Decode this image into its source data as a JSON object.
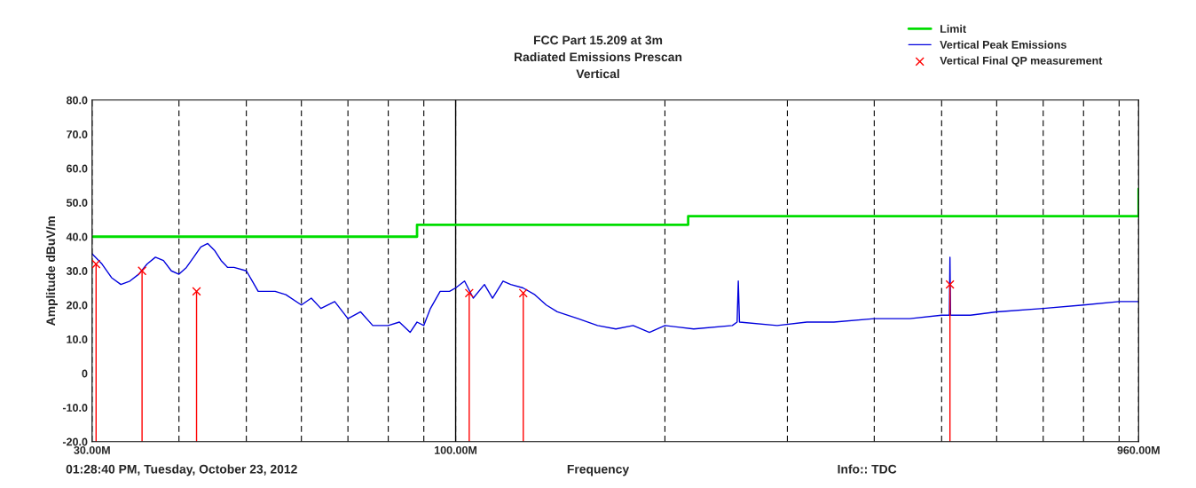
{
  "chart_data": {
    "type": "line",
    "title": "FCC Part 15.209 at 3m\nRadiated Emissions Prescan\nVertical",
    "xlabel": "Frequency",
    "ylabel": "Amplitude dBuV/m",
    "log": "x",
    "grid": "x",
    "legend": "top right",
    "xlim": [
      30,
      960
    ],
    "ylim": [
      -20,
      80
    ],
    "xticks": [
      {
        "value": 30,
        "label": "30.00M"
      },
      {
        "value": 40,
        "label": null
      },
      {
        "value": 50,
        "label": null
      },
      {
        "value": 60,
        "label": null
      },
      {
        "value": 70,
        "label": null
      },
      {
        "value": 80,
        "label": null
      },
      {
        "value": 90,
        "label": null
      },
      {
        "value": 100,
        "label": "100.00M"
      },
      {
        "value": 200,
        "label": null
      },
      {
        "value": 300,
        "label": null
      },
      {
        "value": 400,
        "label": null
      },
      {
        "value": 500,
        "label": null
      },
      {
        "value": 600,
        "label": null
      },
      {
        "value": 700,
        "label": null
      },
      {
        "value": 800,
        "label": null
      },
      {
        "value": 900,
        "label": null
      },
      {
        "value": 960,
        "label": "960.00M"
      }
    ],
    "yticks": [
      {
        "value": -20,
        "label": "-20.0"
      },
      {
        "value": -10,
        "label": "-10.0"
      },
      0,
      {
        "value": 10,
        "label": "10.0"
      },
      {
        "value": 20,
        "label": "20.0"
      },
      {
        "value": 30,
        "label": "30.0"
      },
      {
        "value": 40,
        "label": "40.0"
      },
      {
        "value": 50,
        "label": "50.0"
      },
      {
        "value": 60,
        "label": "60.0"
      },
      {
        "value": 70,
        "label": "70.0"
      },
      {
        "value": 80,
        "label": "80.0"
      }
    ],
    "ref_lines": [
      {
        "axis": "x",
        "value": 100,
        "color": "#000000",
        "line_style": "solid"
      }
    ],
    "annotations": [
      "01:28:40 PM, Tuesday, October 23, 2012",
      "Info:: TDC"
    ],
    "series": [
      {
        "name": "Limit",
        "type": "step",
        "color": "#00dd00",
        "x": [
          30,
          88,
          88,
          216,
          216,
          960,
          960
        ],
        "values": [
          40,
          40,
          43.5,
          43.5,
          46,
          46,
          54
        ]
      },
      {
        "name": "Vertical Peak Emissions",
        "color": "#0000dd",
        "x": [
          30,
          31,
          32,
          33,
          34,
          35,
          36,
          37,
          38,
          39,
          40,
          41,
          42,
          43,
          44,
          45,
          46,
          47,
          48,
          50,
          51,
          52,
          55,
          57,
          60,
          62,
          64,
          67,
          70,
          73,
          76,
          80,
          83,
          86,
          88,
          90,
          92,
          95,
          98,
          100,
          103,
          106,
          110,
          113,
          117,
          120,
          125,
          130,
          135,
          140,
          150,
          160,
          170,
          180,
          190,
          200,
          220,
          250,
          254,
          255,
          256,
          290,
          320,
          350,
          400,
          450,
          500,
          513,
          514,
          515,
          550,
          600,
          700,
          800,
          900,
          960
        ],
        "values": [
          35,
          32,
          28,
          26,
          27,
          29,
          32,
          34,
          33,
          30,
          29,
          31,
          34,
          37,
          38,
          36,
          33,
          31,
          31,
          30,
          27,
          24,
          24,
          23,
          20,
          22,
          19,
          21,
          16,
          18,
          14,
          14,
          15,
          12,
          15,
          14,
          19,
          24,
          24,
          25,
          27,
          22,
          26,
          22,
          27,
          26,
          25,
          23,
          20,
          18,
          16,
          14,
          13,
          14,
          12,
          14,
          13,
          14,
          15,
          27,
          15,
          14,
          15,
          15,
          16,
          16,
          17,
          17,
          34,
          17,
          17,
          18,
          19,
          20,
          21,
          21
        ]
      },
      {
        "name": "Vertical Final QP measurement",
        "type": "lollipop",
        "color": "#ff0000",
        "marker": "cross",
        "x": [
          30.4,
          35.4,
          42.4,
          104.6,
          125.1,
          514
        ],
        "values": [
          32,
          30,
          24,
          23.5,
          23.5,
          26
        ],
        "errors": [
          [
            -20,
            32
          ],
          [
            -20,
            30
          ],
          [
            -20,
            24
          ],
          [
            -20,
            23.5
          ],
          [
            -20,
            23.5
          ],
          [
            -20,
            26
          ]
        ]
      }
    ]
  }
}
